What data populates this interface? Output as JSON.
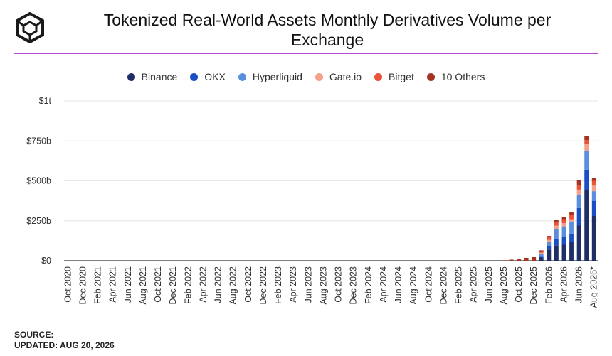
{
  "header": {
    "title_line1": "Tokenized Real-World Assets Monthly Derivatives Volume per",
    "title_line2": "Exchange",
    "logo_icon": "cube-logo-icon"
  },
  "colors": {
    "accent_rule": "#b44dd6",
    "grid": "#e6e6e6",
    "axis": "#333333"
  },
  "legend": [
    {
      "label": "Binance",
      "color": "#1f2f66"
    },
    {
      "label": "OKX",
      "color": "#1a4fc4"
    },
    {
      "label": "Hyperliquid",
      "color": "#5a8fe0"
    },
    {
      "label": "Gate.io",
      "color": "#f4a08a"
    },
    {
      "label": "Bitget",
      "color": "#e8533a"
    },
    {
      "label": "10 Others",
      "color": "#a43322"
    }
  ],
  "footer": {
    "source": "SOURCE:",
    "updated": "UPDATED: AUG 20, 2026"
  },
  "chart_data": {
    "type": "bar",
    "stacked": true,
    "grid": true,
    "legend_position": "top-center",
    "ylim": [
      0,
      1000000000000
    ],
    "y_ticks": [
      {
        "value": 0,
        "label": "$0"
      },
      {
        "value": 250000000000,
        "label": "$250b"
      },
      {
        "value": 500000000000,
        "label": "$500b"
      },
      {
        "value": 750000000000,
        "label": "$750b"
      },
      {
        "value": 1000000000000,
        "label": "$1t"
      }
    ],
    "categories": [
      "Oct 2020",
      "Nov 2020",
      "Dec 2020",
      "Jan 2021",
      "Feb 2021",
      "Mar 2021",
      "Apr 2021",
      "May 2021",
      "Jun 2021",
      "Jul 2021",
      "Aug 2021",
      "Sep 2021",
      "Oct 2021",
      "Nov 2021",
      "Dec 2021",
      "Jan 2022",
      "Feb 2022",
      "Mar 2022",
      "Apr 2022",
      "May 2022",
      "Jun 2022",
      "Jul 2022",
      "Aug 2022",
      "Sep 2022",
      "Oct 2022",
      "Nov 2022",
      "Dec 2022",
      "Jan 2023",
      "Feb 2023",
      "Mar 2023",
      "Apr 2023",
      "May 2023",
      "Jun 2023",
      "Jul 2023",
      "Aug 2023",
      "Sep 2023",
      "Oct 2023",
      "Nov 2023",
      "Dec 2023",
      "Jan 2024",
      "Feb 2024",
      "Mar 2024",
      "Apr 2024",
      "May 2024",
      "Jun 2024",
      "Jul 2024",
      "Aug 2024",
      "Sep 2024",
      "Oct 2024",
      "Nov 2024",
      "Dec 2024",
      "Jan 2025",
      "Feb 2025",
      "Mar 2025",
      "Apr 2025",
      "May 2025",
      "Jun 2025",
      "Jul 2025",
      "Aug 2025",
      "Sep 2025",
      "Oct 2025",
      "Nov 2025",
      "Dec 2025",
      "Jan 2026",
      "Feb 2026",
      "Mar 2026",
      "Apr 2026",
      "May 2026",
      "Jun 2026",
      "Jul 2026",
      "Aug 2026*"
    ],
    "x_tick_labels": [
      "Oct 2020",
      "Dec 2020",
      "Feb 2021",
      "Apr 2021",
      "Jun 2021",
      "Aug 2021",
      "Oct 2021",
      "Dec 2021",
      "Feb 2022",
      "Apr 2022",
      "Jun 2022",
      "Aug 2022",
      "Oct 2022",
      "Dec 2022",
      "Feb 2023",
      "Apr 2023",
      "Jun 2023",
      "Aug 2023",
      "Oct 2023",
      "Dec 2023",
      "Feb 2024",
      "Apr 2024",
      "Jun 2024",
      "Aug 2024",
      "Oct 2024",
      "Dec 2024",
      "Feb 2025",
      "Apr 2025",
      "Jun 2025",
      "Aug 2025",
      "Oct 2025",
      "Dec 2025",
      "Feb 2026",
      "Apr 2026",
      "Jun 2026",
      "Aug 2026*"
    ],
    "series": [
      {
        "name": "Binance",
        "values": [
          0,
          0,
          0,
          0,
          0,
          0,
          0,
          0,
          0,
          0,
          0,
          0,
          0,
          0,
          0,
          0,
          0,
          0,
          0,
          0,
          0,
          0,
          0,
          0,
          0,
          0,
          0,
          0,
          0,
          0,
          0,
          0,
          0,
          0,
          0,
          0,
          0,
          0,
          0,
          0,
          0,
          0,
          0,
          0,
          0,
          0,
          0,
          0,
          0,
          0,
          0,
          0,
          0,
          0,
          0,
          0,
          0,
          0,
          0,
          0,
          0,
          0,
          0,
          20000000000,
          70000000000,
          95000000000,
          100000000000,
          120000000000,
          220000000000,
          440000000000,
          280000000000
        ]
      },
      {
        "name": "OKX",
        "values": [
          0,
          0,
          0,
          0,
          0,
          0,
          0,
          0,
          0,
          0,
          0,
          0,
          0,
          0,
          0,
          0,
          0,
          0,
          0,
          0,
          0,
          0,
          0,
          0,
          0,
          0,
          0,
          0,
          0,
          0,
          0,
          0,
          0,
          0,
          0,
          0,
          0,
          0,
          0,
          0,
          0,
          0,
          0,
          0,
          0,
          0,
          0,
          0,
          0,
          0,
          0,
          0,
          0,
          0,
          0,
          0,
          0,
          0,
          0,
          0,
          0,
          0,
          0,
          10000000000,
          25000000000,
          40000000000,
          50000000000,
          50000000000,
          110000000000,
          130000000000,
          95000000000
        ]
      },
      {
        "name": "Hyperliquid",
        "values": [
          0,
          0,
          0,
          0,
          0,
          0,
          0,
          0,
          0,
          0,
          0,
          0,
          0,
          0,
          0,
          0,
          0,
          0,
          0,
          0,
          0,
          0,
          0,
          0,
          0,
          0,
          0,
          0,
          0,
          0,
          0,
          0,
          0,
          0,
          0,
          0,
          0,
          0,
          0,
          0,
          0,
          0,
          0,
          0,
          0,
          0,
          0,
          0,
          0,
          0,
          0,
          0,
          0,
          0,
          0,
          0,
          0,
          0,
          0,
          0,
          0,
          0,
          0,
          10000000000,
          25000000000,
          65000000000,
          65000000000,
          70000000000,
          80000000000,
          115000000000,
          60000000000
        ]
      },
      {
        "name": "Gate.io",
        "values": [
          0,
          0,
          0,
          0,
          0,
          0,
          0,
          0,
          0,
          0,
          0,
          0,
          0,
          0,
          0,
          0,
          0,
          0,
          0,
          0,
          0,
          0,
          0,
          0,
          0,
          0,
          0,
          0,
          0,
          0,
          0,
          0,
          0,
          0,
          0,
          0,
          0,
          0,
          0,
          0,
          0,
          0,
          0,
          0,
          0,
          0,
          0,
          0,
          0,
          0,
          0,
          0,
          0,
          0,
          0,
          0,
          0,
          0,
          0,
          0,
          0,
          0,
          0,
          10000000000,
          10000000000,
          20000000000,
          20000000000,
          20000000000,
          35000000000,
          45000000000,
          35000000000
        ]
      },
      {
        "name": "Bitget",
        "values": [
          0,
          0,
          0,
          0,
          0,
          0,
          0,
          0,
          0,
          0,
          0,
          0,
          0,
          0,
          0,
          0,
          0,
          0,
          0,
          0,
          0,
          0,
          0,
          0,
          0,
          0,
          0,
          0,
          0,
          0,
          0,
          0,
          0,
          0,
          0,
          0,
          0,
          0,
          0,
          0,
          0,
          0,
          0,
          0,
          0,
          0,
          0,
          0,
          0,
          0,
          0,
          0,
          0,
          0,
          0,
          0,
          0,
          0,
          0,
          0,
          0,
          0,
          0,
          10000000000,
          15000000000,
          20000000000,
          25000000000,
          25000000000,
          30000000000,
          25000000000,
          30000000000
        ]
      },
      {
        "name": "10 Others",
        "values": [
          0,
          0,
          0,
          0,
          0,
          0,
          0,
          0,
          0,
          0,
          0,
          0,
          0,
          0,
          0,
          0,
          0,
          0,
          0,
          0,
          0,
          0,
          0,
          0,
          0,
          0,
          0,
          0,
          0,
          0,
          0,
          0,
          0,
          0,
          0,
          0,
          0,
          0,
          0,
          0,
          0,
          0,
          0,
          0,
          0,
          0,
          0,
          0,
          0,
          0,
          0,
          0,
          0,
          0,
          0,
          0,
          0,
          0,
          3000000000,
          7000000000,
          13000000000,
          18000000000,
          23000000000,
          5000000000,
          10000000000,
          15000000000,
          15000000000,
          20000000000,
          30000000000,
          25000000000,
          20000000000
        ]
      }
    ]
  }
}
